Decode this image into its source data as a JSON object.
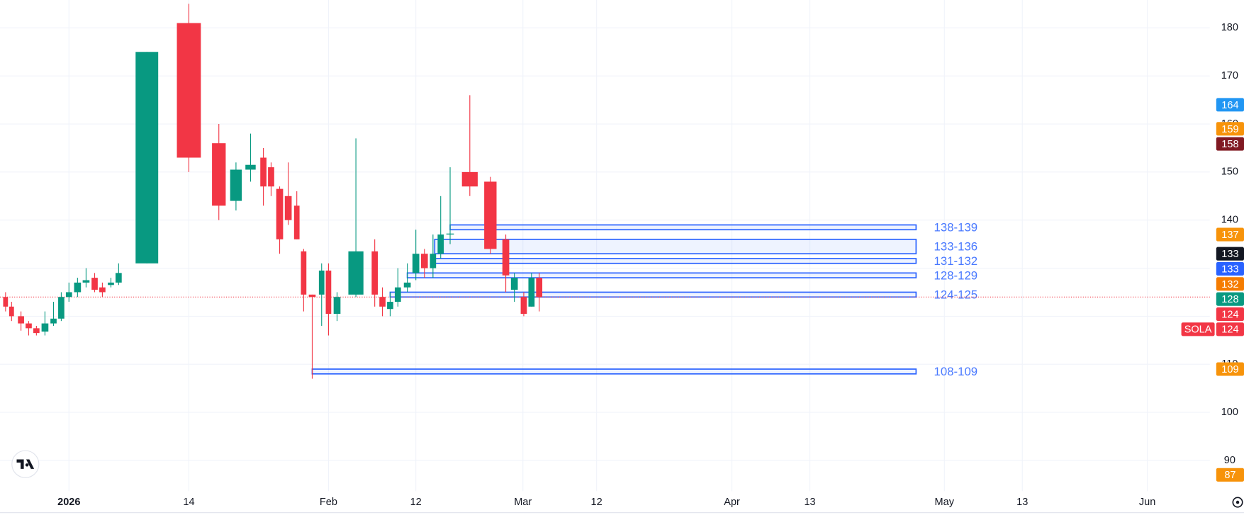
{
  "chart_data": {
    "type": "candlestick",
    "symbol": "SOLA",
    "x": [
      0,
      0.7,
      1.8,
      2.7,
      3.6,
      4.6,
      5.6,
      6.5,
      7.4,
      8.4,
      9.4,
      10.4,
      11.3,
      12.3,
      13.2,
      16.5,
      21.4,
      24.9,
      26.9,
      28.6,
      30.1,
      31.0,
      32.0,
      33.0,
      34.0,
      34.8,
      35.8,
      36.9,
      37.7,
      38.7,
      40.9,
      43.1,
      44.0,
      44.9,
      45.8,
      46.9,
      47.9,
      48.9,
      49.9,
      50.8,
      51.9,
      54.2,
      56.6,
      58.4,
      59.4,
      60.5,
      61.4,
      62.3
    ],
    "open": [
      124,
      122,
      120,
      118.5,
      117.5,
      116.8,
      118.5,
      119.5,
      124,
      125,
      127,
      128,
      126,
      126.5,
      127,
      131,
      181,
      156,
      144,
      150.5,
      153,
      151,
      146.5,
      145,
      143,
      133.5,
      124.5,
      124.5,
      129.5,
      120.5,
      124.5,
      133.5,
      124,
      121.5,
      123,
      126,
      129,
      133,
      130,
      133,
      137,
      150,
      148,
      136,
      125.5,
      124,
      122,
      128
    ],
    "high": [
      125,
      123,
      121,
      119,
      118,
      121,
      123,
      125,
      127,
      128,
      130,
      129,
      127,
      128,
      131,
      175,
      185,
      160,
      152,
      158,
      155,
      152,
      147,
      152,
      146,
      134,
      124.5,
      131,
      131,
      125,
      157,
      136,
      126,
      125,
      130,
      131,
      138,
      134,
      137,
      145,
      151,
      166,
      149,
      137,
      129,
      125,
      129,
      129
    ],
    "low": [
      121,
      119,
      117,
      116,
      116,
      116,
      118,
      119,
      123,
      124,
      126,
      125,
      124,
      126,
      126.5,
      131,
      150,
      140,
      142,
      148,
      143,
      145,
      133,
      139,
      136,
      121,
      107,
      118,
      116,
      119,
      124,
      122,
      120,
      120,
      122,
      125,
      127.5,
      128,
      128,
      132,
      135,
      145,
      133,
      125,
      123,
      120,
      122,
      121
    ],
    "close": [
      122,
      120,
      118.5,
      117.5,
      116.5,
      118.5,
      119.5,
      124,
      125,
      127,
      127.5,
      125.5,
      125,
      127,
      129,
      175,
      153,
      143,
      150.5,
      151.5,
      147,
      147,
      136,
      140,
      136,
      124.5,
      124,
      129.5,
      120.5,
      124,
      133.5,
      124.5,
      122,
      123,
      126,
      127,
      133,
      130,
      133,
      137,
      137.2,
      147,
      134,
      128.5,
      128,
      120.5,
      128,
      124
    ],
    "up_color": "#089981",
    "down_color": "#f23645",
    "xlim": [
      -0.65,
      140.6
    ],
    "xticks": [
      {
        "value": 7.4,
        "label": "2026"
      },
      {
        "value": 21.4,
        "label": "14"
      },
      {
        "value": 37.7,
        "label": "Feb"
      },
      {
        "value": 47.9,
        "label": "12"
      },
      {
        "value": 60.4,
        "label": "Mar"
      },
      {
        "value": 69.0,
        "label": "12"
      },
      {
        "value": 84.8,
        "label": "Apr"
      },
      {
        "value": 93.9,
        "label": "13"
      },
      {
        "value": 109.6,
        "label": "May"
      },
      {
        "value": 118.7,
        "label": "13"
      },
      {
        "value": 133.3,
        "label": "Jun"
      }
    ],
    "ylim": [
      83.6,
      185.8
    ],
    "yticks": [
      90,
      100,
      110,
      120,
      130,
      140,
      150,
      160,
      170,
      180
    ],
    "grid": true,
    "zones": [
      {
        "low": 138,
        "high": 139,
        "x_start": 51.9,
        "x_end": 106.3,
        "label": "138-139",
        "color": "#2962ff"
      },
      {
        "low": 133,
        "high": 136,
        "x_start": 50.1,
        "x_end": 106.3,
        "label": "133-136",
        "color": "#2962ff"
      },
      {
        "low": 131,
        "high": 132,
        "x_start": 49.8,
        "x_end": 106.3,
        "label": "131-132",
        "color": "#2962ff"
      },
      {
        "low": 128,
        "high": 129,
        "x_start": 46.9,
        "x_end": 106.3,
        "label": "128-129",
        "color": "#2962ff"
      },
      {
        "low": 124,
        "high": 125,
        "x_start": 44.9,
        "x_end": 106.3,
        "label": "124-125",
        "color": "#2962ff"
      },
      {
        "low": 108,
        "high": 109,
        "x_start": 35.8,
        "x_end": 106.3,
        "label": "108-109",
        "color": "#2962ff"
      }
    ],
    "price_badges": [
      {
        "value": 164,
        "color": "#2196f3"
      },
      {
        "value": 159,
        "color": "#f7930a"
      },
      {
        "value": 158,
        "color": "#801922"
      },
      {
        "value": 137,
        "color": "#f7930a"
      },
      {
        "value": 133,
        "color": "#131722"
      },
      {
        "value": 133,
        "color": "#2962ff"
      },
      {
        "value": 132,
        "color": "#f57c00"
      },
      {
        "value": 128,
        "color": "#089981"
      },
      {
        "value": 124,
        "color": "#f23645"
      },
      {
        "value": 124,
        "color": "#f23645"
      },
      {
        "value": 109,
        "color": "#f7930a"
      },
      {
        "value": 87,
        "color": "#f7930a"
      }
    ],
    "last_price": {
      "value": 124,
      "color": "#f23645"
    }
  }
}
